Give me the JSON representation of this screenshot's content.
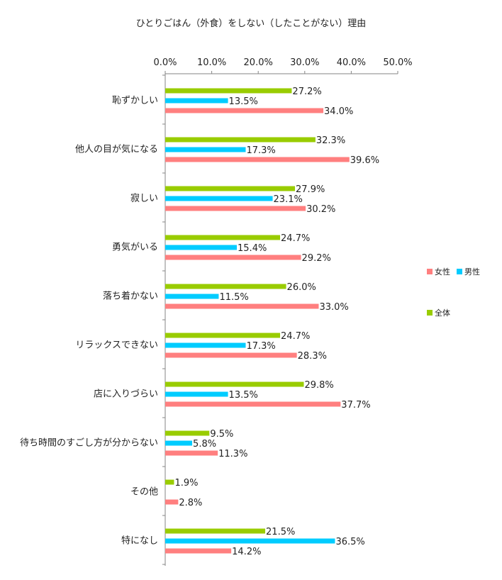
{
  "chart_data": {
    "type": "bar",
    "orientation": "horizontal",
    "title": "ひとりごはん（外食）をしない（したことがない）理由",
    "categories": [
      "恥ずかしい",
      "他人の目が気になる",
      "寂しい",
      "勇気がいる",
      "落ち着かない",
      "リラックスできない",
      "店に入りづらい",
      "待ち時間のすごし方が分からない",
      "その他",
      "特になし"
    ],
    "series": [
      {
        "name": "全体",
        "color": "#99cc00",
        "values": [
          27.2,
          32.3,
          27.9,
          24.7,
          26.0,
          24.7,
          29.8,
          9.5,
          1.9,
          21.5
        ],
        "labels": [
          "27.2%",
          "32.3%",
          "27.9%",
          "24.7%",
          "26.0%",
          "24.7%",
          "29.8%",
          "9.5%",
          "1.9%",
          "21.5%"
        ]
      },
      {
        "name": "男性",
        "color": "#00ccff",
        "values": [
          13.5,
          17.3,
          23.1,
          15.4,
          11.5,
          17.3,
          13.5,
          5.8,
          null,
          36.5
        ],
        "labels": [
          "13.5%",
          "17.3%",
          "23.1%",
          "15.4%",
          "11.5%",
          "17.3%",
          "13.5%",
          "5.8%",
          "",
          "36.5%"
        ]
      },
      {
        "name": "女性",
        "color": "#ff7f7f",
        "values": [
          34.0,
          39.6,
          30.2,
          29.2,
          33.0,
          28.3,
          37.7,
          11.3,
          2.8,
          14.2
        ],
        "labels": [
          "34.0%",
          "39.6%",
          "30.2%",
          "29.2%",
          "33.0%",
          "28.3%",
          "37.7%",
          "11.3%",
          "2.8%",
          "14.2%"
        ]
      }
    ],
    "x_ticks": [
      0,
      10,
      20,
      30,
      40,
      50
    ],
    "x_tick_labels": [
      "0.0%",
      "10.0%",
      "20.0%",
      "30.0%",
      "40.0%",
      "50.0%"
    ],
    "xlim": [
      0,
      50
    ],
    "xlabel": "",
    "ylabel": "",
    "grid": false,
    "axis_position": "top",
    "legend": {
      "position": "right",
      "order": [
        "女性",
        "男性",
        "全体"
      ]
    }
  }
}
